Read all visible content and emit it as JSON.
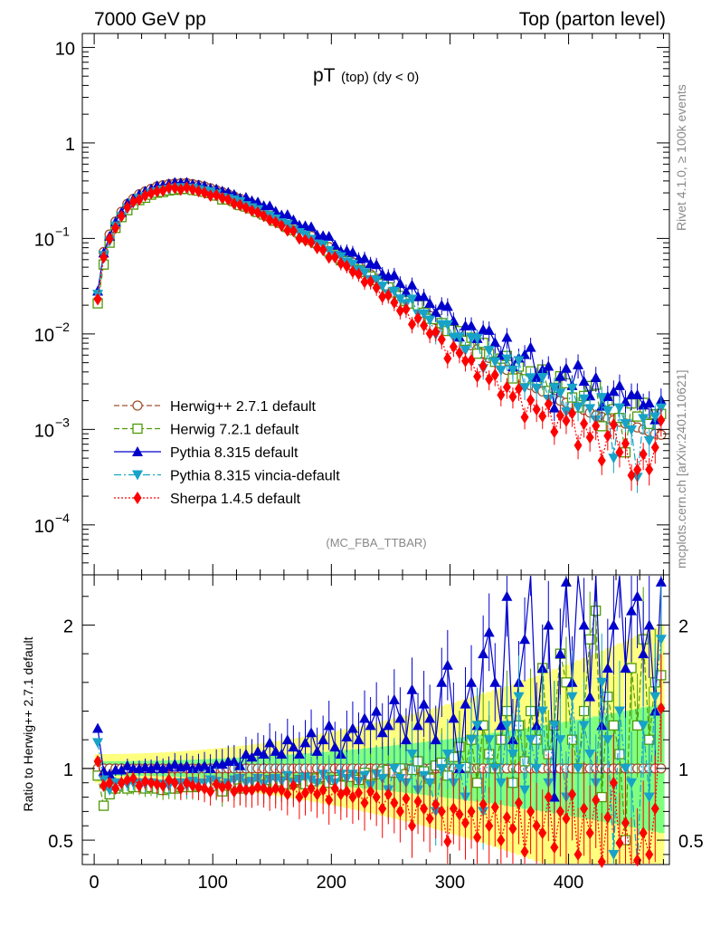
{
  "header": {
    "left": "7000 GeV pp",
    "right": "Top (parton level)"
  },
  "side": {
    "rivet": "Rivet 4.1.0, ≥ 100k events",
    "mcplots": "mcplots.cern.ch [arXiv:2401.10621]"
  },
  "chart_data": {
    "type": "line",
    "title_main": "pT",
    "title_sub": "(top) (dy < 0)",
    "analysis_label": "(MC_FBA_TTBAR)",
    "ratio_ylabel": "Ratio to Herwig++ 2.7.1 default",
    "xlim": [
      -10,
      485
    ],
    "ylim_log": [
      3e-05,
      14
    ],
    "ratio_ylim": [
      0.33,
      2.35
    ],
    "x_ticks": [
      0,
      100,
      200,
      300,
      400
    ],
    "x_tick_labels": [
      "0",
      "100",
      "200",
      "300",
      "400"
    ],
    "y_ticks": [
      0.0001,
      0.001,
      0.01,
      0.1,
      1,
      10
    ],
    "y_tick_labels": [
      {
        "base": "10",
        "exp": "−4"
      },
      {
        "base": "10",
        "exp": "−3"
      },
      {
        "base": "10",
        "exp": "−2"
      },
      {
        "base": "10",
        "exp": "−1"
      },
      {
        "base": "1",
        "exp": ""
      },
      {
        "base": "10",
        "exp": ""
      }
    ],
    "ratio_ticks": [
      0.5,
      1,
      2
    ],
    "ratio_tick_labels": [
      "0.5",
      "1",
      "2"
    ],
    "x": [
      3,
      8,
      13,
      18,
      23,
      28,
      33,
      38,
      43,
      48,
      53,
      58,
      63,
      68,
      73,
      78,
      83,
      88,
      93,
      98,
      103,
      108,
      113,
      118,
      123,
      128,
      133,
      138,
      143,
      148,
      153,
      158,
      163,
      168,
      173,
      178,
      183,
      188,
      193,
      198,
      203,
      208,
      213,
      218,
      223,
      228,
      233,
      238,
      243,
      248,
      253,
      258,
      263,
      268,
      273,
      278,
      283,
      288,
      293,
      298,
      303,
      308,
      313,
      318,
      323,
      328,
      333,
      338,
      343,
      348,
      353,
      358,
      363,
      368,
      373,
      378,
      383,
      388,
      393,
      398,
      403,
      408,
      413,
      418,
      423,
      428,
      433,
      438,
      443,
      448,
      453,
      458,
      463,
      468,
      473,
      478
    ],
    "reference_y": [
      0.022,
      0.072,
      0.11,
      0.15,
      0.19,
      0.23,
      0.26,
      0.29,
      0.31,
      0.33,
      0.35,
      0.36,
      0.37,
      0.375,
      0.378,
      0.38,
      0.37,
      0.36,
      0.35,
      0.335,
      0.32,
      0.305,
      0.29,
      0.275,
      0.26,
      0.245,
      0.23,
      0.215,
      0.2,
      0.186,
      0.172,
      0.16,
      0.148,
      0.136,
      0.125,
      0.115,
      0.106,
      0.097,
      0.089,
      0.081,
      0.074,
      0.067,
      0.061,
      0.056,
      0.051,
      0.046,
      0.042,
      0.038,
      0.034,
      0.031,
      0.028,
      0.025,
      0.023,
      0.021,
      0.019,
      0.017,
      0.0155,
      0.014,
      0.0125,
      0.0113,
      0.0102,
      0.0093,
      0.0084,
      0.0076,
      0.0069,
      0.0062,
      0.0056,
      0.0051,
      0.0046,
      0.0042,
      0.0038,
      0.0035,
      0.0032,
      0.0029,
      0.0027,
      0.0025,
      0.0023,
      0.0021,
      0.002,
      0.0019,
      0.0018,
      0.0017,
      0.0016,
      0.0015,
      0.0014,
      0.00135,
      0.0013,
      0.00125,
      0.0012,
      0.00115,
      0.0011,
      0.00105,
      0.001,
      0.00095,
      0.0009,
      0.00088
    ],
    "series": [
      {
        "name": "Herwig++ 2.7.1 default",
        "color": "#a0522d",
        "dash": "6,3",
        "marker": "circle-open",
        "ratio": [
          1.0,
          1.0,
          1.0,
          1.0,
          1.0,
          1.0,
          1.0,
          1.0,
          1.0,
          1.0,
          1.0,
          1.0,
          1.0,
          1.0,
          1.0,
          1.0,
          1.0,
          1.0,
          1.0,
          1.0,
          1.0,
          1.0,
          1.0,
          1.0,
          1.0,
          1.0,
          1.0,
          1.0,
          1.0,
          1.0,
          1.0,
          1.0,
          1.0,
          1.0,
          1.0,
          1.0,
          1.0,
          1.0,
          1.0,
          1.0,
          1.0,
          1.0,
          1.0,
          1.0,
          1.0,
          1.0,
          1.0,
          1.0,
          1.0,
          1.0,
          1.0,
          1.0,
          1.0,
          1.0,
          1.0,
          1.0,
          1.0,
          1.0,
          1.0,
          1.0,
          1.0,
          1.0,
          1.0,
          1.0,
          1.0,
          1.0,
          1.0,
          1.0,
          1.0,
          1.0,
          1.0,
          1.0,
          1.0,
          1.0,
          1.0,
          1.0,
          1.0,
          1.0,
          1.0,
          1.0,
          1.0,
          1.0,
          1.0,
          1.0,
          1.0,
          1.0,
          1.0,
          1.0,
          1.0,
          1.0,
          1.0,
          1.0,
          1.0,
          1.0,
          1.0,
          1.0
        ]
      },
      {
        "name": "Herwig 7.2.1 default",
        "color": "#4e9a06",
        "dash": "6,3",
        "marker": "square-open",
        "ratio": [
          0.95,
          0.74,
          0.82,
          0.86,
          0.88,
          0.86,
          0.87,
          0.87,
          0.86,
          0.87,
          0.86,
          0.85,
          0.86,
          0.86,
          0.87,
          0.87,
          0.87,
          0.88,
          0.88,
          0.89,
          0.88,
          0.84,
          0.88,
          0.89,
          0.86,
          0.88,
          0.9,
          0.88,
          0.89,
          0.92,
          0.89,
          0.91,
          0.89,
          0.9,
          0.92,
          0.89,
          0.91,
          0.93,
          0.94,
          0.9,
          0.92,
          0.88,
          0.95,
          0.94,
          0.92,
          0.97,
          0.95,
          0.96,
          0.98,
          0.99,
          0.97,
          1.0,
          0.96,
          0.99,
          1.05,
          0.98,
          0.93,
          1.02,
          1.04,
          0.95,
          1.08,
          1.15,
          1.01,
          1.2,
          0.9,
          1.3,
          1.1,
          1.0,
          1.2,
          1.4,
          0.9,
          1.3,
          1.05,
          1.4,
          1.2,
          1.7,
          1.1,
          1.3,
          1.8,
          1.6,
          1.2,
          1.0,
          1.4,
          1.9,
          2.1,
          0.8,
          1.5,
          1.3,
          1.1,
          0.5,
          1.7,
          1.3,
          1.9,
          1.2,
          1.6,
          1.65
        ]
      },
      {
        "name": "Pythia 8.315 default",
        "color": "#0000cc",
        "dash": "",
        "marker": "triangle-up",
        "ratio": [
          1.28,
          0.98,
          0.96,
          0.99,
          0.99,
          1.02,
          1.0,
          1.0,
          1.01,
          1.0,
          1.02,
          1.0,
          1.01,
          1.03,
          1.01,
          1.02,
          1.0,
          1.01,
          1.02,
          1.0,
          1.03,
          1.03,
          1.05,
          1.05,
          1.02,
          1.1,
          1.08,
          1.12,
          1.1,
          1.18,
          1.12,
          1.1,
          1.2,
          1.15,
          1.1,
          1.18,
          1.25,
          1.12,
          1.2,
          1.3,
          1.15,
          1.1,
          1.22,
          1.28,
          1.2,
          1.35,
          1.3,
          1.4,
          1.25,
          1.3,
          1.48,
          1.35,
          1.2,
          1.55,
          1.3,
          1.45,
          1.35,
          1.2,
          1.6,
          1.72,
          1.35,
          1.0,
          1.45,
          1.6,
          1.3,
          1.8,
          1.95,
          1.6,
          1.3,
          2.2,
          1.2,
          1.6,
          1.9,
          2.5,
          1.3,
          1.7,
          2.0,
          0.8,
          1.8,
          2.3,
          1.6,
          2.8,
          2.0,
          1.5,
          2.5,
          1.3,
          1.7,
          2.0,
          2.4,
          1.7,
          2.1,
          2.2,
          1.8,
          2.0,
          1.4,
          2.3
        ]
      },
      {
        "name": "Pythia 8.315 vincia-default",
        "color": "#17a2c8",
        "dash": "8,3,2,3",
        "marker": "triangle-down",
        "ratio": [
          1.18,
          0.92,
          0.85,
          0.9,
          0.89,
          0.89,
          0.9,
          0.9,
          0.89,
          0.9,
          0.88,
          0.89,
          0.88,
          0.9,
          0.9,
          0.88,
          0.91,
          0.9,
          0.9,
          0.92,
          0.91,
          0.88,
          0.9,
          0.92,
          0.93,
          0.9,
          0.91,
          0.93,
          0.89,
          0.92,
          0.93,
          0.91,
          0.95,
          0.9,
          0.92,
          0.94,
          0.92,
          0.9,
          0.96,
          0.92,
          0.9,
          0.96,
          0.93,
          0.96,
          0.91,
          0.95,
          0.88,
          0.96,
          0.93,
          0.85,
          1.0,
          0.93,
          0.9,
          1.1,
          0.85,
          0.95,
          0.9,
          0.7,
          1.0,
          1.1,
          0.9,
          1.0,
          0.8,
          1.2,
          1.3,
          0.7,
          1.2,
          1.0,
          0.9,
          1.3,
          1.1,
          1.5,
          0.85,
          1.2,
          1.0,
          1.4,
          0.9,
          1.3,
          1.2,
          0.8,
          1.5,
          1.0,
          1.3,
          1.1,
          0.9,
          1.6,
          1.2,
          0.4,
          1.4,
          1.0,
          0.9,
          0.3,
          1.3,
          0.8,
          1.5,
          1.9
        ]
      },
      {
        "name": "Sherpa 1.4.5 default",
        "color": "#ff0000",
        "dash": "2,2",
        "marker": "diamond",
        "ratio": [
          1.05,
          0.88,
          0.9,
          0.86,
          0.9,
          0.92,
          0.93,
          0.88,
          0.91,
          0.9,
          0.89,
          0.88,
          0.92,
          0.9,
          0.86,
          0.9,
          0.88,
          0.87,
          0.86,
          0.84,
          0.89,
          0.87,
          0.88,
          0.84,
          0.86,
          0.85,
          0.85,
          0.87,
          0.86,
          0.84,
          0.86,
          0.85,
          0.82,
          0.88,
          0.8,
          0.83,
          0.86,
          0.82,
          0.85,
          0.78,
          0.86,
          0.82,
          0.84,
          0.8,
          0.83,
          0.76,
          0.84,
          0.8,
          0.72,
          0.82,
          0.76,
          0.7,
          0.79,
          0.6,
          0.77,
          0.72,
          0.65,
          0.75,
          0.7,
          0.49,
          0.72,
          0.68,
          0.62,
          0.7,
          0.52,
          0.75,
          0.6,
          0.73,
          0.5,
          0.66,
          0.58,
          0.76,
          0.42,
          0.7,
          0.6,
          0.55,
          0.8,
          0.45,
          0.7,
          0.65,
          0.82,
          0.4,
          0.72,
          0.55,
          0.78,
          0.35,
          0.66,
          0.9,
          0.48,
          0.62,
          0.3,
          0.36,
          0.55,
          0.4,
          0.72,
          1.42
        ]
      }
    ],
    "legend": [
      "Herwig++ 2.7.1 default",
      "Herwig 7.2.1 default",
      "Pythia 8.315 default",
      "Pythia 8.315 vincia-default",
      "Sherpa 1.4.5 default"
    ],
    "band_colors": {
      "inner": "#7fff7f",
      "outer": "#ffff7f"
    }
  }
}
